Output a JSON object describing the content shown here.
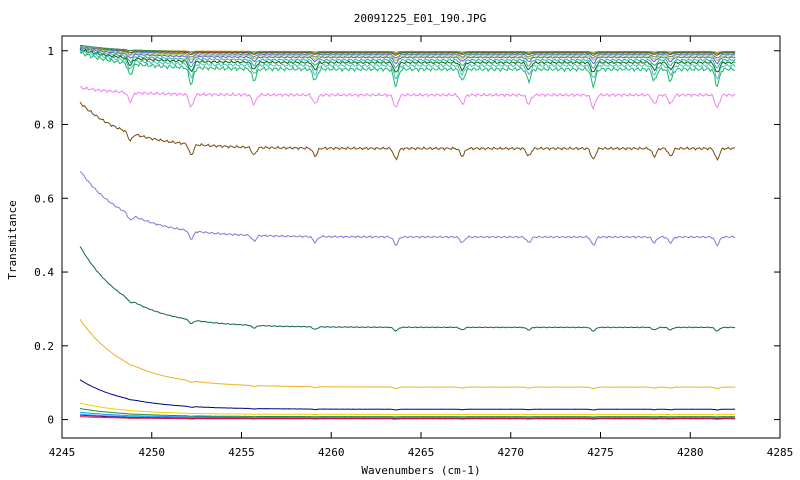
{
  "chart_data": {
    "type": "line",
    "title": "20091225_E01_190.JPG",
    "xlabel": "Wavenumbers (cm-1)",
    "ylabel": "Transmitance",
    "xlim": [
      4245,
      4285
    ],
    "ylim": [
      -0.05,
      1.04
    ],
    "xticks": [
      "4245",
      "4250",
      "4255",
      "4260",
      "4265",
      "4270",
      "4275",
      "4280",
      "4285"
    ],
    "yticks": [
      "0",
      "0.2",
      "0.4",
      "0.6",
      "0.8",
      "1"
    ],
    "grid": false,
    "x_start": 4246,
    "x_end": 4282.5,
    "absorption_lines": [
      4248.8,
      4252.2,
      4255.7,
      4259.1,
      4263.6,
      4267.3,
      4271.0,
      4274.6,
      4278.0,
      4278.9,
      4281.5
    ],
    "series": [
      {
        "color": "#b8860b",
        "start": 1.01,
        "plateau": 0.998,
        "depth": 0.002
      },
      {
        "color": "#2e8b57",
        "start": 1.015,
        "plateau": 0.996,
        "depth": 0.004
      },
      {
        "color": "#8b4513",
        "start": 1.01,
        "plateau": 0.994,
        "depth": 0.006
      },
      {
        "color": "#4682b4",
        "start": 1.012,
        "plateau": 0.99,
        "depth": 0.01
      },
      {
        "color": "#9acd32",
        "start": 1.01,
        "plateau": 0.986,
        "depth": 0.012
      },
      {
        "color": "#6a5acd",
        "start": 1.008,
        "plateau": 0.982,
        "depth": 0.016
      },
      {
        "color": "#20b2aa",
        "start": 1.005,
        "plateau": 0.975,
        "depth": 0.022
      },
      {
        "color": "#006400",
        "start": 1.003,
        "plateau": 0.968,
        "depth": 0.028
      },
      {
        "color": "#40c0c0",
        "start": 1.0,
        "plateau": 0.96,
        "depth": 0.035
      },
      {
        "color": "#1fb36b",
        "start": 0.995,
        "plateau": 0.95,
        "depth": 0.045
      },
      {
        "color": "#ee82ee",
        "start": 0.9,
        "plateau": 0.88,
        "depth": 0.035
      },
      {
        "color": "#7a4a10",
        "start": 0.86,
        "plateau": 0.735,
        "depth": 0.03
      },
      {
        "color": "#9370db",
        "start": 0.675,
        "plateau": 0.495,
        "depth": 0.022
      },
      {
        "color": "#0b6b3a",
        "start": 0.47,
        "plateau": 0.25,
        "depth": 0.01
      },
      {
        "color": "#f0b020",
        "start": 0.272,
        "plateau": 0.088,
        "depth": 0.004
      },
      {
        "color": "#00007f",
        "start": 0.108,
        "plateau": 0.028,
        "depth": 0.002
      },
      {
        "color": "#f0d000",
        "start": 0.045,
        "plateau": 0.014,
        "depth": 0.001
      },
      {
        "color": "#228b22",
        "start": 0.03,
        "plateau": 0.008,
        "depth": 0.001
      },
      {
        "color": "#1e90ff",
        "start": 0.02,
        "plateau": 0.006,
        "depth": 0.001
      },
      {
        "color": "#00bfff",
        "start": 0.015,
        "plateau": 0.004,
        "depth": 0.001
      },
      {
        "color": "#800080",
        "start": 0.012,
        "plateau": 0.003,
        "depth": 0.001
      },
      {
        "color": "#dc143c",
        "start": 0.008,
        "plateau": 0.002,
        "depth": 0.001
      }
    ]
  }
}
